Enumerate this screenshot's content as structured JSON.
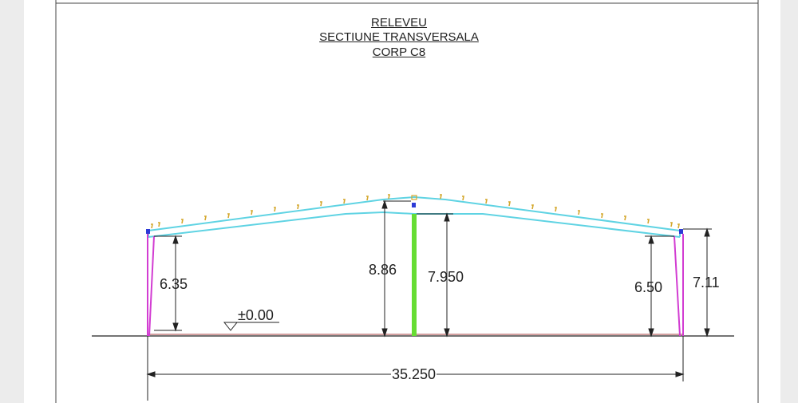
{
  "title": {
    "line1": "RELEVEU",
    "line2": "SECTIUNE TRANSVERSALA",
    "line3": "CORP C8"
  },
  "dimensions": {
    "left_eave_height": "6.35",
    "ridge_height": "8.86",
    "ridge_clear_height": "7.950",
    "right_eave_height": "6.50",
    "right_total_height": "7.11",
    "level_mark": "±0.00",
    "span_width": "35.250"
  },
  "colors": {
    "roof_frame": "#5fd3e3",
    "columns": "#d23cd2",
    "center_post": "#66dd33",
    "purlins": "#d4a72c",
    "dimension_lines": "#222222"
  }
}
